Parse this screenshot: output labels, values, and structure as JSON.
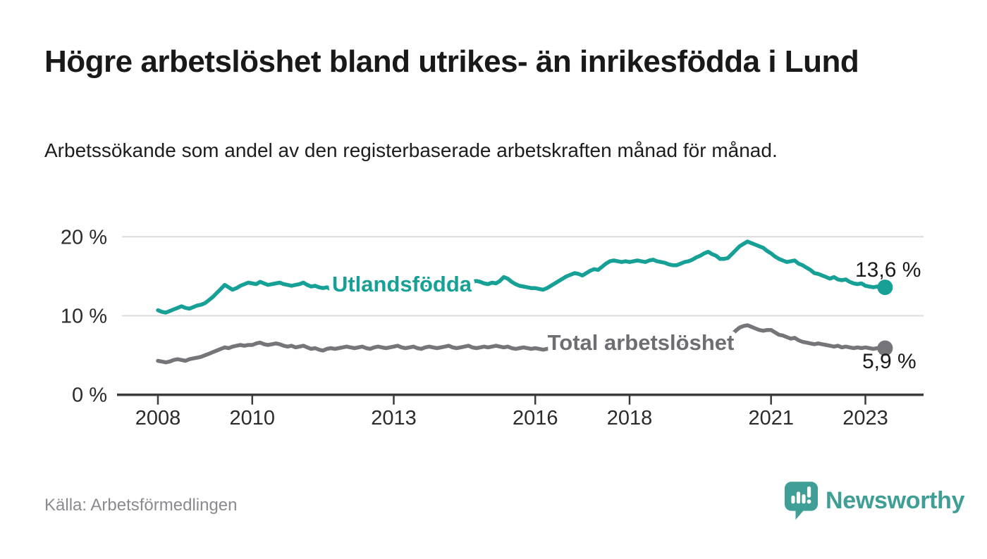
{
  "header": {
    "title": "Högre arbetslöshet bland utrikes- än inrikesfödda i Lund",
    "subtitle": "Arbetssökande som andel av den registerbaserade arbetskraften månad för månad."
  },
  "footer": {
    "source": "Källa: Arbetsförmedlingen",
    "brand": "Newsworthy"
  },
  "colors": {
    "teal_line": "#16a096",
    "gray_line": "#76767a",
    "gray_label": "#6d6d72",
    "logo_teal": "#3f9e96",
    "axis": "#3b3b3b",
    "grid": "#dcdcdc"
  },
  "chart_data": {
    "type": "line",
    "frequency": "monthly",
    "x_start": "2008-01",
    "x_end": "2023-06",
    "ylim": [
      0,
      21
    ],
    "grid": "horizontal-only",
    "legend_position": "inline-labels",
    "y_ticks": [
      {
        "value": 20,
        "label": "20 %"
      },
      {
        "value": 10,
        "label": "10 %"
      },
      {
        "value": 0,
        "label": "0 %"
      }
    ],
    "x_ticks": [
      {
        "year": 2008,
        "label": "2008"
      },
      {
        "year": 2010,
        "label": "2010"
      },
      {
        "year": 2013,
        "label": "2013"
      },
      {
        "year": 2016,
        "label": "2016"
      },
      {
        "year": 2018,
        "label": "2018"
      },
      {
        "year": 2021,
        "label": "2021"
      },
      {
        "year": 2023,
        "label": "2023"
      }
    ],
    "series": [
      {
        "id": "utlandsfodda",
        "name": "Utlandsfödda",
        "color": "#16a096",
        "end_label": "13,6 %",
        "end_value": 13.6,
        "values": [
          10.7,
          10.5,
          10.4,
          10.6,
          10.8,
          11.0,
          11.2,
          11.0,
          10.9,
          11.1,
          11.3,
          11.4,
          11.6,
          12.0,
          12.4,
          12.9,
          13.4,
          13.9,
          13.6,
          13.3,
          13.5,
          13.8,
          14.0,
          14.2,
          14.1,
          14.0,
          14.3,
          14.1,
          13.9,
          14.0,
          14.1,
          14.2,
          14.0,
          13.9,
          13.8,
          13.9,
          14.0,
          14.2,
          13.9,
          13.7,
          13.8,
          13.6,
          13.5,
          13.6,
          13.4,
          13.3,
          13.4,
          13.5,
          13.4,
          13.5,
          13.6,
          13.4,
          13.3,
          13.4,
          13.5,
          13.6,
          13.5,
          13.4,
          13.5,
          13.6,
          13.7,
          13.8,
          13.9,
          13.8,
          13.7,
          13.8,
          13.9,
          14.0,
          13.9,
          13.8,
          13.9,
          14.0,
          14.1,
          14.2,
          14.0,
          13.9,
          14.0,
          14.1,
          14.3,
          14.2,
          14.3,
          14.4,
          14.3,
          14.1,
          14.0,
          14.2,
          14.1,
          14.4,
          14.9,
          14.7,
          14.3,
          14.0,
          13.8,
          13.7,
          13.6,
          13.5,
          13.5,
          13.4,
          13.3,
          13.5,
          13.8,
          14.1,
          14.4,
          14.7,
          15.0,
          15.2,
          15.4,
          15.3,
          15.1,
          15.4,
          15.7,
          15.9,
          15.8,
          16.2,
          16.6,
          16.9,
          17.0,
          16.9,
          16.8,
          16.9,
          16.8,
          16.9,
          17.0,
          16.9,
          16.8,
          17.0,
          17.1,
          16.9,
          16.8,
          16.7,
          16.5,
          16.4,
          16.4,
          16.6,
          16.8,
          16.9,
          17.1,
          17.4,
          17.6,
          17.9,
          18.1,
          17.8,
          17.6,
          17.2,
          17.2,
          17.3,
          17.8,
          18.3,
          18.8,
          19.1,
          19.4,
          19.2,
          19.0,
          18.8,
          18.6,
          18.2,
          17.9,
          17.5,
          17.2,
          17.0,
          16.8,
          16.9,
          17.0,
          16.6,
          16.4,
          16.1,
          15.8,
          15.4,
          15.3,
          15.1,
          14.9,
          14.7,
          14.9,
          14.6,
          14.5,
          14.6,
          14.3,
          14.1,
          14.0,
          14.1,
          13.8,
          13.7,
          13.6,
          13.7,
          13.5,
          13.6
        ]
      },
      {
        "id": "total",
        "name": "Total arbetslöshet",
        "color": "#76767a",
        "end_label": "5,9 %",
        "end_value": 5.9,
        "values": [
          4.3,
          4.2,
          4.1,
          4.2,
          4.4,
          4.5,
          4.4,
          4.3,
          4.5,
          4.6,
          4.7,
          4.8,
          5.0,
          5.2,
          5.4,
          5.6,
          5.8,
          6.0,
          5.9,
          6.1,
          6.2,
          6.3,
          6.2,
          6.3,
          6.3,
          6.5,
          6.6,
          6.4,
          6.3,
          6.4,
          6.5,
          6.4,
          6.2,
          6.1,
          6.2,
          6.0,
          6.1,
          6.2,
          6.0,
          5.8,
          5.9,
          5.7,
          5.6,
          5.8,
          5.9,
          5.8,
          5.9,
          6.0,
          6.1,
          6.0,
          5.9,
          6.0,
          6.1,
          5.9,
          5.8,
          6.0,
          6.1,
          6.0,
          5.9,
          6.0,
          6.1,
          6.2,
          6.0,
          5.9,
          6.0,
          6.1,
          5.9,
          5.8,
          6.0,
          6.1,
          6.0,
          5.9,
          6.0,
          6.1,
          6.2,
          6.0,
          5.9,
          6.0,
          6.1,
          6.2,
          6.0,
          5.9,
          6.0,
          6.1,
          6.0,
          6.1,
          6.2,
          6.1,
          6.0,
          6.1,
          5.9,
          5.8,
          5.9,
          6.0,
          5.9,
          5.8,
          5.9,
          5.8,
          5.7,
          5.8,
          5.9,
          6.0,
          5.9,
          5.8,
          5.9,
          5.8,
          5.7,
          5.8,
          5.9,
          6.0,
          6.1,
          6.0,
          5.9,
          6.0,
          6.1,
          6.0,
          5.9,
          6.0,
          6.1,
          6.0,
          5.9,
          6.0,
          5.9,
          5.8,
          5.9,
          6.0,
          6.1,
          6.0,
          5.9,
          5.8,
          5.9,
          6.0,
          6.0,
          6.1,
          6.2,
          6.1,
          6.2,
          6.3,
          6.4,
          6.3,
          6.4,
          6.5,
          6.6,
          6.7,
          6.9,
          7.1,
          7.6,
          8.1,
          8.5,
          8.7,
          8.8,
          8.6,
          8.4,
          8.2,
          8.1,
          8.2,
          8.2,
          7.9,
          7.6,
          7.5,
          7.3,
          7.1,
          7.2,
          6.9,
          6.7,
          6.6,
          6.5,
          6.4,
          6.5,
          6.4,
          6.3,
          6.2,
          6.1,
          6.2,
          6.0,
          6.1,
          6.0,
          5.9,
          6.0,
          5.9,
          6.0,
          5.9,
          5.8,
          5.9,
          5.8,
          5.9
        ]
      }
    ]
  }
}
